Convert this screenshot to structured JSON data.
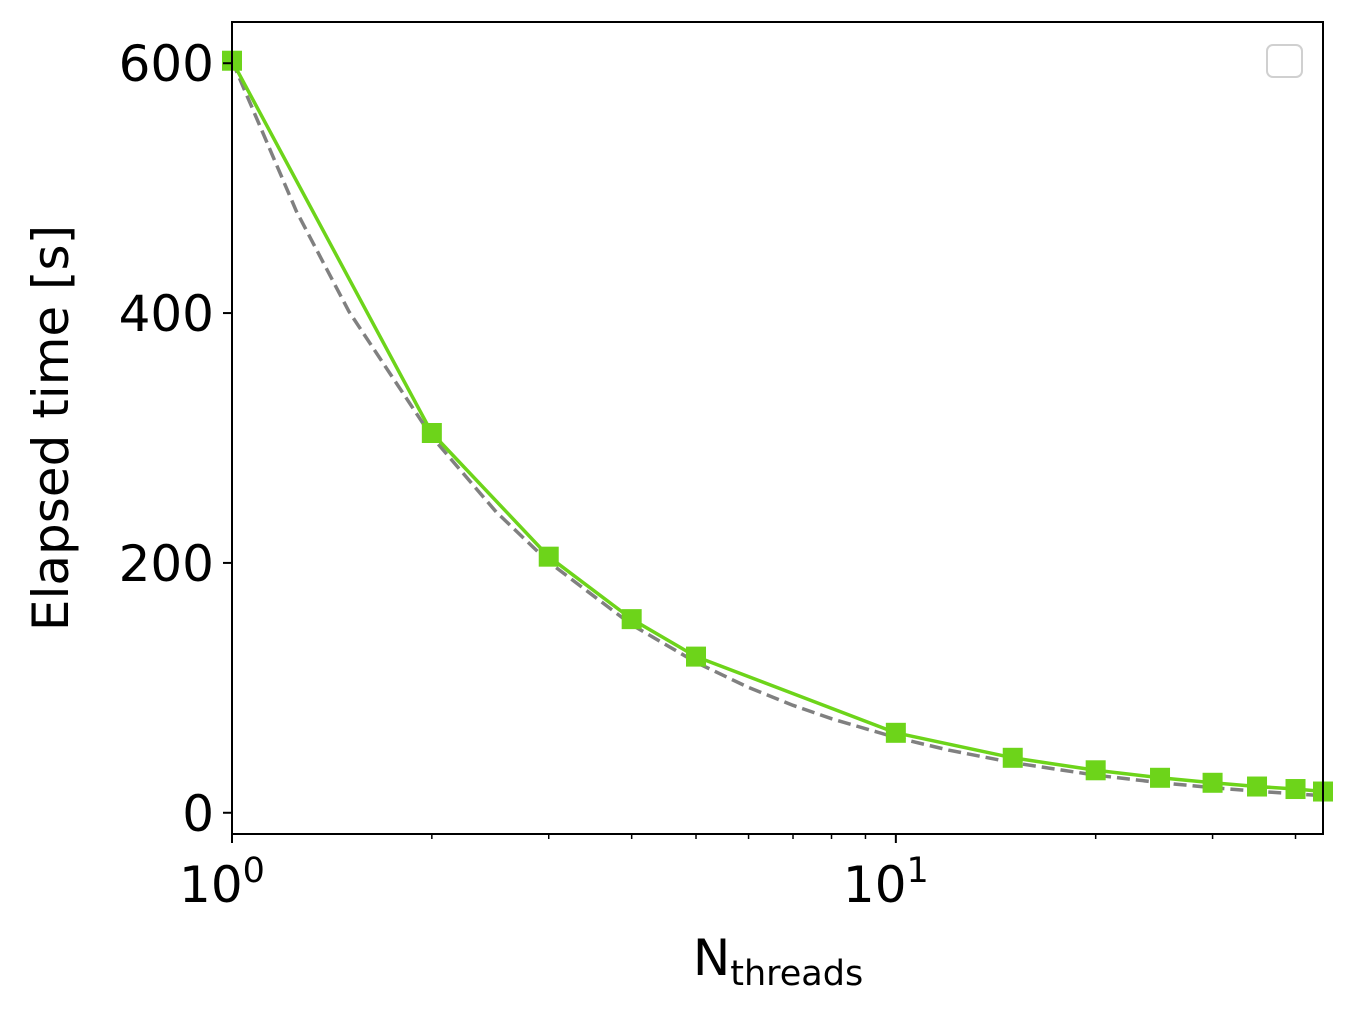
{
  "chart_data": {
    "type": "line",
    "title": "",
    "xscale": "log",
    "xlim": [
      1,
      44
    ],
    "ylim": [
      -17,
      633
    ],
    "xlabel": {
      "main": "N",
      "subscript": "threads"
    },
    "ylabel": "Elapsed time [s]",
    "xticks_major": [
      {
        "value": 1,
        "base": "10",
        "exp": "0"
      },
      {
        "value": 10,
        "base": "10",
        "exp": "1"
      }
    ],
    "xticks_minor": [
      2,
      3,
      4,
      5,
      6,
      7,
      8,
      9,
      20,
      30,
      40
    ],
    "yticks": [
      {
        "value": 0,
        "label": "0"
      },
      {
        "value": 200,
        "label": "200"
      },
      {
        "value": 400,
        "label": "400"
      },
      {
        "value": 600,
        "label": "600"
      }
    ],
    "legend": {
      "placement": "top-right",
      "entries": []
    },
    "grid": false,
    "series": [
      {
        "style": "solid",
        "color": "#6dd41a",
        "marker": "square",
        "x": [
          1,
          2,
          3,
          4,
          5,
          10,
          15,
          20,
          25,
          30,
          35,
          40,
          44
        ],
        "y": [
          602,
          304,
          205,
          155,
          125,
          64,
          44,
          34,
          28,
          24,
          21,
          19,
          17
        ]
      },
      {
        "style": "dashed",
        "color": "#808080",
        "marker": "none",
        "x": [
          1,
          1.25,
          1.5,
          2,
          2.5,
          3,
          4,
          5,
          6,
          7,
          8,
          10,
          12,
          15,
          20,
          25,
          30,
          35,
          40,
          44
        ],
        "y": [
          602,
          481.6,
          401.3,
          301,
          240.8,
          200.7,
          150.5,
          120.4,
          100.3,
          86,
          75.3,
          60.2,
          50.2,
          40.1,
          30.1,
          24.1,
          20.1,
          17.2,
          15.1,
          13.7
        ]
      }
    ]
  }
}
